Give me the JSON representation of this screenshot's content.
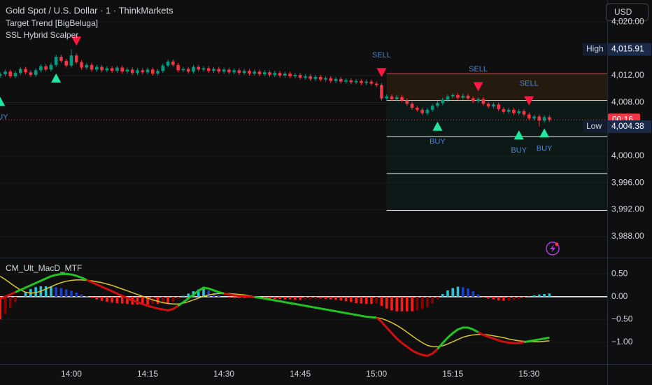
{
  "header": {
    "currency": "USD"
  },
  "chart_data": [
    {
      "type": "candlestick",
      "title": "Gold Spot / U.S. Dollar · 1 · ThinkMarkets",
      "indicators": [
        "Target Trend [BigBeluga]",
        "SSL Hybrid Scalper"
      ],
      "categories": [
        null,
        null,
        null,
        null,
        null,
        null,
        null,
        null,
        null,
        null,
        null,
        null,
        null,
        null,
        "14:00",
        null,
        null,
        null,
        null,
        null,
        null,
        null,
        null,
        null,
        null,
        null,
        null,
        null,
        null,
        "14:15",
        null,
        null,
        null,
        null,
        null,
        null,
        null,
        null,
        null,
        null,
        null,
        null,
        null,
        null,
        "14:30",
        null,
        null,
        null,
        null,
        null,
        null,
        null,
        null,
        null,
        null,
        null,
        null,
        null,
        null,
        "14:45",
        null,
        null,
        null,
        null,
        null,
        null,
        null,
        null,
        null,
        null,
        null,
        null,
        null,
        null,
        "15:00",
        null,
        null,
        null,
        null,
        null,
        null,
        null,
        null,
        null,
        null,
        null,
        null,
        null,
        null,
        "15:15",
        null,
        null,
        null,
        null,
        null,
        null,
        null,
        null,
        null,
        null,
        null,
        null,
        null,
        null,
        "15:30",
        null,
        null,
        null,
        null
      ],
      "open": [
        4012.0,
        4012.2,
        4012.6,
        4011.9,
        4012.4,
        4013.0,
        4012.5,
        4012.1,
        4012.8,
        4013.4,
        4012.9,
        4013.6,
        4014.8,
        4014.2,
        4013.5,
        4015.0,
        4014.0,
        4013.2,
        4013.6,
        4012.9,
        4013.3,
        4012.8,
        4013.1,
        4012.7,
        4013.2,
        4012.6,
        4012.9,
        4012.4,
        4012.8,
        4012.5,
        4012.9,
        4012.3,
        4012.7,
        4013.5,
        4014.1,
        4013.6,
        4012.8,
        4013.0,
        4012.6,
        4013.3,
        4012.9,
        4013.1,
        4012.7,
        4013.0,
        4012.6,
        4012.9,
        4012.5,
        4012.8,
        4012.4,
        4012.7,
        4012.3,
        4012.6,
        4012.2,
        4012.5,
        4012.1,
        4012.4,
        4012.0,
        4012.3,
        4011.9,
        4012.1,
        4011.7,
        4011.9,
        4011.5,
        4011.8,
        4011.4,
        4011.6,
        4011.2,
        4011.5,
        4011.1,
        4011.3,
        4011.0,
        4011.2,
        4010.9,
        4011.1,
        4010.8,
        4010.6,
        4008.6,
        4008.9,
        4008.5,
        4008.8,
        4008.3,
        4007.8,
        4007.2,
        4006.9,
        4006.4,
        4006.9,
        4007.5,
        4007.9,
        4008.4,
        4008.9,
        4009.1,
        4008.7,
        4009.0,
        4008.6,
        4008.2,
        4008.5,
        4007.8,
        4007.4,
        4007.7,
        4007.0,
        4006.6,
        4006.9,
        4006.4,
        4006.7,
        4006.2,
        4005.6,
        4005.9,
        4005.3,
        4005.8
      ],
      "high": [
        4012.5,
        4012.9,
        4012.9,
        4012.7,
        4013.3,
        4013.3,
        4012.8,
        4013.1,
        4013.7,
        4013.7,
        4013.9,
        4015.1,
        4015.1,
        4014.5,
        4015.9,
        4015.3,
        4014.3,
        4013.9,
        4013.9,
        4013.6,
        4013.6,
        4013.4,
        4013.4,
        4013.5,
        4013.5,
        4013.2,
        4013.2,
        4013.1,
        4013.1,
        4013.2,
        4013.2,
        4013.0,
        4013.8,
        4014.4,
        4014.4,
        4013.9,
        4013.3,
        4013.3,
        4013.6,
        4013.6,
        4013.4,
        4013.4,
        4013.3,
        4013.3,
        4013.2,
        4013.2,
        4013.1,
        4013.1,
        4013.0,
        4013.0,
        4012.9,
        4012.9,
        4012.8,
        4012.8,
        4012.7,
        4012.7,
        4012.6,
        4012.6,
        4012.4,
        4012.4,
        4012.2,
        4012.2,
        4012.1,
        4012.1,
        4011.9,
        4011.9,
        4011.8,
        4011.8,
        4011.6,
        4011.6,
        4011.5,
        4011.5,
        4011.4,
        4011.4,
        4011.1,
        4010.9,
        4009.2,
        4009.2,
        4009.1,
        4009.1,
        4008.6,
        4008.1,
        4007.5,
        4007.2,
        4007.2,
        4007.8,
        4008.2,
        4008.7,
        4009.2,
        4009.4,
        4009.4,
        4009.3,
        4009.3,
        4008.9,
        4008.8,
        4008.8,
        4008.1,
        4008.0,
        4008.0,
        4007.3,
        4007.2,
        4007.2,
        4007.0,
        4007.0,
        4006.5,
        4006.2,
        4006.2,
        4006.1,
        4006.1
      ],
      "low": [
        4011.7,
        4011.9,
        4011.6,
        4011.6,
        4012.1,
        4012.2,
        4011.8,
        4011.8,
        4012.5,
        4012.6,
        4012.6,
        4013.3,
        4013.9,
        4013.2,
        4013.2,
        4013.7,
        4012.9,
        4012.9,
        4012.6,
        4012.6,
        4012.5,
        4012.5,
        4012.4,
        4012.4,
        4012.3,
        4012.3,
        4012.1,
        4012.1,
        4012.2,
        4012.2,
        4012.0,
        4012.0,
        4012.4,
        4013.2,
        4013.3,
        4012.5,
        4012.5,
        4012.3,
        4012.3,
        4012.6,
        4012.6,
        4012.4,
        4012.4,
        4012.3,
        4012.3,
        4012.2,
        4012.2,
        4012.1,
        4012.1,
        4012.0,
        4012.0,
        4011.9,
        4011.9,
        4011.8,
        4011.8,
        4011.7,
        4011.7,
        4011.6,
        4011.6,
        4011.4,
        4011.4,
        4011.2,
        4011.2,
        4011.1,
        4011.1,
        4010.9,
        4010.9,
        4010.8,
        4010.8,
        4010.7,
        4010.7,
        4010.6,
        4010.6,
        4010.5,
        4010.3,
        4008.3,
        4008.3,
        4008.2,
        4008.2,
        4008.0,
        4007.5,
        4006.9,
        4006.6,
        4006.1,
        4006.1,
        4006.6,
        4007.2,
        4007.6,
        4008.1,
        4008.6,
        4008.4,
        4008.4,
        4008.3,
        4007.9,
        4007.9,
        4007.5,
        4007.1,
        4007.1,
        4006.7,
        4006.3,
        4006.3,
        4006.1,
        4006.1,
        4005.9,
        4005.3,
        4005.3,
        4004.4,
        4005.0,
        4005.1
      ],
      "close": [
        4012.2,
        4012.6,
        4011.9,
        4012.4,
        4013.0,
        4012.5,
        4012.1,
        4012.8,
        4013.4,
        4012.9,
        4013.6,
        4014.8,
        4014.2,
        4013.5,
        4015.0,
        4014.0,
        4013.2,
        4013.6,
        4012.9,
        4013.3,
        4012.8,
        4013.1,
        4012.7,
        4013.2,
        4012.6,
        4012.9,
        4012.4,
        4012.8,
        4012.5,
        4012.9,
        4012.3,
        4012.7,
        4013.5,
        4014.1,
        4013.6,
        4012.8,
        4013.0,
        4012.6,
        4013.3,
        4012.9,
        4013.1,
        4012.7,
        4013.0,
        4012.6,
        4012.9,
        4012.5,
        4012.8,
        4012.4,
        4012.7,
        4012.3,
        4012.6,
        4012.2,
        4012.5,
        4012.1,
        4012.4,
        4012.0,
        4012.3,
        4011.9,
        4012.1,
        4011.7,
        4011.9,
        4011.5,
        4011.8,
        4011.4,
        4011.6,
        4011.2,
        4011.5,
        4011.1,
        4011.3,
        4011.0,
        4011.2,
        4010.9,
        4011.1,
        4010.8,
        4010.6,
        4008.6,
        4008.9,
        4008.5,
        4008.8,
        4008.3,
        4007.8,
        4007.2,
        4006.9,
        4006.4,
        4006.9,
        4007.5,
        4007.9,
        4008.4,
        4008.9,
        4009.1,
        4008.7,
        4009.0,
        4008.6,
        4008.2,
        4008.5,
        4007.8,
        4007.4,
        4007.7,
        4007.0,
        4006.6,
        4006.9,
        4006.4,
        4006.7,
        4006.2,
        4005.6,
        4005.9,
        4005.3,
        4005.8,
        4005.4
      ],
      "up_color": "#089981",
      "down_color": "#f23645",
      "ylim": [
        3984.85,
        4023.28
      ],
      "yticks": [
        {
          "value": 4020,
          "label": "4,020.00"
        },
        {
          "value": 4012,
          "label": "4,012.00"
        },
        {
          "value": 4008,
          "label": "4,008.00"
        },
        {
          "value": 4000,
          "label": "4,000.00"
        },
        {
          "value": 3996,
          "label": "3,996.00"
        },
        {
          "value": 3992,
          "label": "3,992.00"
        },
        {
          "value": 3988,
          "label": "3,988.00"
        }
      ],
      "grid": true,
      "high_marker": {
        "label": "High",
        "value": 4015.91,
        "value_label": "4,015.91"
      },
      "low_marker": {
        "label": "Low",
        "value": 4004.38,
        "value_label": "4,004.38"
      },
      "countdown": "00:16",
      "buy_signals": [
        {
          "at": 0,
          "price": 4008.1,
          "label": "BUY"
        },
        {
          "at": 11,
          "price": 4011.6
        },
        {
          "at": 86,
          "price": 4004.4,
          "label": "BUY"
        },
        {
          "at": 102,
          "price": 4003.1,
          "label": "BUY"
        },
        {
          "at": 107,
          "price": 4003.4,
          "label": "BUY"
        }
      ],
      "sell_signals": [
        {
          "at": 15,
          "price": 4017.2
        },
        {
          "at": 75,
          "price": 4012.5,
          "label": "SELL"
        },
        {
          "at": 94,
          "price": 4010.4,
          "label": "SELL"
        },
        {
          "at": 104,
          "price": 4008.3,
          "label": "SELL"
        }
      ],
      "trend_levels": {
        "from": 76,
        "values": [
          4012.3,
          4008.3,
          4002.9,
          3997.4,
          3991.9
        ],
        "colors": [
          "#f23645",
          "#8fd8c8",
          "#e8e8e8",
          "#e8e8e8",
          "#e8e8e8"
        ]
      }
    },
    {
      "type": "macd",
      "title": "CM_Ult_MacD_MTF",
      "macd": {
        "up_color": "#22c322",
        "down_color": "#d01010",
        "values": [
          -0.05,
          0.0,
          0.05,
          0.1,
          0.15,
          0.2,
          0.25,
          0.3,
          0.35,
          0.4,
          0.45,
          0.48,
          0.5,
          0.5,
          0.49,
          0.46,
          0.42,
          0.37,
          0.32,
          0.27,
          0.22,
          0.17,
          0.12,
          0.07,
          0.02,
          -0.03,
          -0.08,
          -0.12,
          -0.16,
          -0.2,
          -0.23,
          -0.26,
          -0.28,
          -0.3,
          -0.27,
          -0.2,
          -0.12,
          -0.04,
          0.05,
          0.13,
          0.2,
          0.18,
          0.14,
          0.1,
          0.07,
          0.05,
          0.03,
          0.02,
          0.01,
          0.0,
          -0.01,
          -0.02,
          -0.04,
          -0.06,
          -0.08,
          -0.1,
          -0.12,
          -0.14,
          -0.16,
          -0.18,
          -0.2,
          -0.22,
          -0.24,
          -0.26,
          -0.28,
          -0.3,
          -0.32,
          -0.34,
          -0.36,
          -0.38,
          -0.4,
          -0.42,
          -0.44,
          -0.45,
          -0.46,
          -0.55,
          -0.68,
          -0.8,
          -0.92,
          -1.02,
          -1.1,
          -1.18,
          -1.24,
          -1.28,
          -1.3,
          -1.25,
          -1.15,
          -1.02,
          -0.9,
          -0.8,
          -0.72,
          -0.68,
          -0.68,
          -0.72,
          -0.78,
          -0.84,
          -0.88,
          -0.92,
          -0.96,
          -0.99,
          -1.01,
          -1.02,
          -1.02,
          -1.0,
          -0.98,
          -0.96,
          -0.94,
          -0.92,
          -0.9
        ]
      },
      "signal": {
        "color": "#d6c72a",
        "values": [
          0.45,
          0.38,
          0.3,
          0.22,
          0.15,
          0.1,
          0.08,
          0.09,
          0.12,
          0.17,
          0.22,
          0.27,
          0.31,
          0.34,
          0.36,
          0.37,
          0.37,
          0.36,
          0.35,
          0.33,
          0.31,
          0.28,
          0.25,
          0.21,
          0.17,
          0.13,
          0.09,
          0.05,
          0.01,
          -0.03,
          -0.07,
          -0.1,
          -0.13,
          -0.15,
          -0.16,
          -0.16,
          -0.14,
          -0.11,
          -0.07,
          -0.03,
          0.01,
          0.04,
          0.06,
          0.07,
          0.07,
          0.07,
          0.06,
          0.05,
          0.04,
          0.02,
          0.0,
          -0.02,
          -0.04,
          -0.06,
          -0.08,
          -0.1,
          -0.12,
          -0.14,
          -0.16,
          -0.18,
          -0.2,
          -0.22,
          -0.24,
          -0.26,
          -0.28,
          -0.3,
          -0.32,
          -0.34,
          -0.36,
          -0.38,
          -0.4,
          -0.42,
          -0.44,
          -0.45,
          -0.46,
          -0.48,
          -0.52,
          -0.57,
          -0.63,
          -0.7,
          -0.78,
          -0.86,
          -0.94,
          -1.01,
          -1.07,
          -1.1,
          -1.1,
          -1.08,
          -1.04,
          -0.99,
          -0.94,
          -0.89,
          -0.86,
          -0.84,
          -0.83,
          -0.83,
          -0.84,
          -0.86,
          -0.88,
          -0.9,
          -0.93,
          -0.95,
          -0.97,
          -0.98,
          -0.99,
          -0.99,
          -0.99,
          -0.98,
          -0.97
        ]
      },
      "histogram": {
        "colors": [
          "#26c6da",
          "#1f3fd0",
          "#ff1a1a",
          "#8b0000"
        ],
        "values": [
          -0.5,
          -0.38,
          -0.25,
          -0.12,
          0.0,
          0.1,
          0.17,
          0.21,
          0.23,
          0.23,
          0.23,
          0.21,
          0.19,
          0.16,
          0.13,
          0.09,
          0.05,
          0.01,
          -0.03,
          -0.06,
          -0.09,
          -0.11,
          -0.13,
          -0.14,
          -0.15,
          -0.16,
          -0.17,
          -0.17,
          -0.17,
          -0.17,
          -0.16,
          -0.16,
          -0.15,
          -0.15,
          -0.11,
          -0.04,
          0.02,
          0.07,
          0.12,
          0.16,
          0.19,
          0.14,
          0.08,
          0.03,
          0.0,
          -0.02,
          -0.03,
          -0.03,
          -0.03,
          -0.02,
          -0.01,
          -0.02,
          -0.03,
          -0.04,
          -0.05,
          -0.05,
          -0.06,
          -0.06,
          -0.07,
          -0.07,
          -0.06,
          -0.05,
          -0.04,
          -0.04,
          -0.05,
          -0.06,
          -0.07,
          -0.08,
          -0.1,
          -0.12,
          -0.14,
          -0.15,
          -0.16,
          -0.16,
          -0.15,
          -0.2,
          -0.26,
          -0.3,
          -0.32,
          -0.32,
          -0.32,
          -0.32,
          -0.3,
          -0.27,
          -0.23,
          -0.15,
          -0.05,
          0.06,
          0.14,
          0.19,
          0.22,
          0.21,
          0.18,
          0.12,
          0.05,
          -0.01,
          -0.04,
          -0.06,
          -0.08,
          -0.09,
          -0.08,
          -0.07,
          -0.05,
          -0.02,
          0.01,
          0.03,
          0.05,
          0.06,
          0.07
        ]
      },
      "ylim": [
        -1.48,
        0.83
      ],
      "yticks": [
        {
          "value": 0.5,
          "label": "0.50"
        },
        {
          "value": 0,
          "label": "0.00"
        },
        {
          "value": -0.5,
          "label": "−0.50"
        },
        {
          "value": -1,
          "label": "−1.00"
        }
      ]
    }
  ]
}
